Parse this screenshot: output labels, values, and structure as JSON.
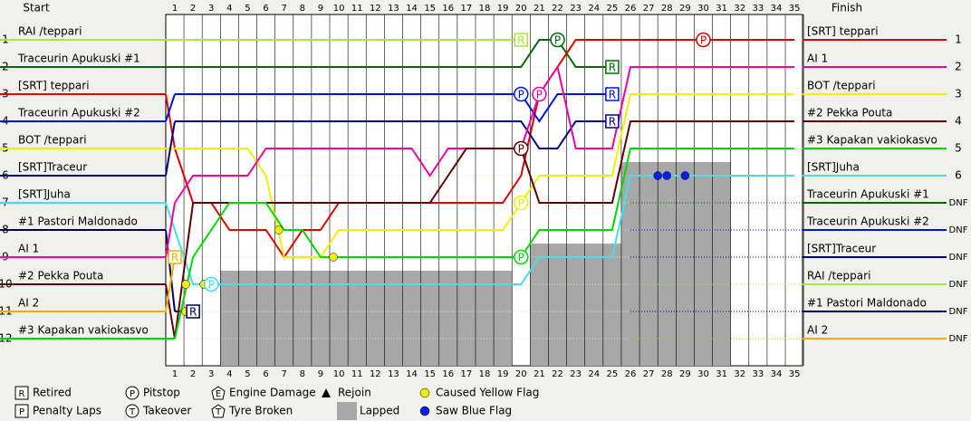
{
  "chart_data": {
    "type": "lapchart",
    "start_title": "Start",
    "finish_title": "Finish",
    "laps": [
      1,
      2,
      3,
      4,
      5,
      6,
      7,
      8,
      9,
      10,
      11,
      12,
      13,
      14,
      15,
      16,
      17,
      18,
      19,
      20,
      21,
      22,
      23,
      24,
      25,
      26,
      27,
      28,
      29,
      30,
      31,
      32,
      33,
      34,
      35
    ],
    "positions": [
      1,
      2,
      3,
      4,
      5,
      6,
      7,
      8,
      9,
      10,
      11,
      12
    ],
    "series": [
      {
        "name": "RAI /teppari",
        "color": "#a8e838",
        "start": 1,
        "values": [
          1,
          1,
          1,
          1,
          1,
          1,
          1,
          1,
          1,
          1,
          1,
          1,
          1,
          1,
          1,
          1,
          1,
          1,
          1,
          1,
          null,
          null,
          null,
          null,
          null,
          null,
          null,
          null,
          null,
          null,
          null,
          null,
          null,
          null,
          null
        ],
        "events": [
          {
            "lap": 20,
            "label": "R",
            "shape": "square"
          }
        ]
      },
      {
        "name": "Traceurin Apukuski #1",
        "color": "#006a00",
        "start": 2,
        "values": [
          2,
          2,
          2,
          2,
          2,
          2,
          2,
          2,
          2,
          2,
          2,
          2,
          2,
          2,
          2,
          2,
          2,
          2,
          2,
          2,
          1,
          1,
          2,
          2,
          2,
          null,
          null,
          null,
          null,
          null,
          null,
          null,
          null,
          null,
          null
        ],
        "events": [
          {
            "lap": 22,
            "label": "P",
            "shape": "circle"
          },
          {
            "lap": 25,
            "label": "R",
            "shape": "square"
          }
        ]
      },
      {
        "name": "[SRT] teppari",
        "color": "#e00000",
        "start": 3,
        "values": [
          5,
          7,
          7,
          8,
          8,
          8,
          9,
          8,
          8,
          7,
          7,
          7,
          7,
          7,
          7,
          7,
          7,
          7,
          7,
          6,
          3,
          2,
          1,
          1,
          1,
          1,
          1,
          1,
          1,
          1,
          1,
          1,
          1,
          1,
          1
        ],
        "events": [
          {
            "lap": 30,
            "label": "P",
            "shape": "circle"
          }
        ]
      },
      {
        "name": "Traceurin Apukuski #2",
        "color": "#0010e0",
        "start": 4,
        "values": [
          3,
          3,
          3,
          3,
          3,
          3,
          3,
          3,
          3,
          3,
          3,
          3,
          3,
          3,
          3,
          3,
          3,
          3,
          3,
          3,
          4,
          3,
          3,
          3,
          3,
          null,
          null,
          null,
          null,
          null,
          null,
          null,
          null,
          null,
          null
        ],
        "events": [
          {
            "lap": 20,
            "label": "P",
            "shape": "circle"
          },
          {
            "lap": 25,
            "label": "R",
            "shape": "square"
          }
        ]
      },
      {
        "name": "BOT /teppari",
        "color": "#f0f000",
        "start": 5,
        "values": [
          5,
          5,
          5,
          5,
          5,
          6,
          9,
          9,
          9,
          8,
          8,
          8,
          8,
          8,
          8,
          8,
          8,
          8,
          8,
          7,
          6,
          6,
          6,
          6,
          6,
          3,
          3,
          3,
          3,
          3,
          3,
          3,
          3,
          3,
          3
        ],
        "events": [
          {
            "lap": 20,
            "label": "P",
            "shape": "circle"
          }
        ]
      },
      {
        "name": "[SRT]Traceur",
        "color": "#000090",
        "start": 6,
        "values": [
          4,
          4,
          4,
          4,
          4,
          4,
          4,
          4,
          4,
          4,
          4,
          4,
          4,
          4,
          4,
          4,
          4,
          4,
          4,
          4,
          5,
          5,
          4,
          4,
          4,
          null,
          null,
          null,
          null,
          null,
          null,
          null,
          null,
          null,
          null
        ],
        "events": [
          {
            "lap": 25,
            "label": "R",
            "shape": "square"
          }
        ]
      },
      {
        "name": "[SRT]Juha",
        "color": "#40e0f0",
        "start": 7,
        "values": [
          8,
          10,
          10,
          10,
          10,
          10,
          10,
          10,
          10,
          10,
          10,
          10,
          10,
          10,
          10,
          10,
          10,
          10,
          10,
          10,
          9,
          9,
          9,
          9,
          9,
          6,
          6,
          6,
          6,
          6,
          6,
          6,
          6,
          6,
          6
        ],
        "events": [
          {
            "lap": 3,
            "label": "P",
            "shape": "circle"
          }
        ]
      },
      {
        "name": "#1 Pastori Maldonado",
        "color": "#000050",
        "start": 8,
        "values": [
          11,
          11,
          null,
          null,
          null,
          null,
          null,
          null,
          null,
          null,
          null,
          null,
          null,
          null,
          null,
          null,
          null,
          null,
          null,
          null,
          null,
          null,
          null,
          null,
          null,
          null,
          null,
          null,
          null,
          null,
          null,
          null,
          null,
          null,
          null
        ],
        "events": [
          {
            "lap": 2,
            "label": "R",
            "shape": "square"
          }
        ]
      },
      {
        "name": "AI 1",
        "color": "#f000a0",
        "start": 9,
        "values": [
          7,
          6,
          6,
          6,
          6,
          5,
          5,
          5,
          5,
          5,
          5,
          5,
          5,
          5,
          6,
          5,
          5,
          5,
          5,
          5,
          3,
          2,
          5,
          5,
          5,
          2,
          2,
          2,
          2,
          2,
          2,
          2,
          2,
          2,
          2
        ],
        "events": [
          {
            "lap": 21,
            "label": "P",
            "shape": "circle"
          }
        ]
      },
      {
        "name": "#2 Pekka Pouta",
        "color": "#600000",
        "start": 10,
        "values": [
          12,
          7,
          7,
          7,
          7,
          7,
          7,
          7,
          7,
          7,
          7,
          7,
          7,
          7,
          7,
          6,
          5,
          5,
          5,
          5,
          7,
          7,
          7,
          7,
          7,
          4,
          4,
          4,
          4,
          4,
          4,
          4,
          4,
          4,
          4
        ],
        "events": [
          {
            "lap": 20,
            "label": "P",
            "shape": "circle"
          }
        ]
      },
      {
        "name": "AI 2",
        "color": "#f0b000",
        "start": 11,
        "values": [
          9,
          null,
          null,
          null,
          null,
          null,
          null,
          null,
          null,
          null,
          null,
          null,
          null,
          null,
          null,
          null,
          null,
          null,
          null,
          null,
          null,
          null,
          null,
          null,
          null,
          null,
          null,
          null,
          null,
          null,
          null,
          null,
          null,
          null,
          null
        ],
        "events": [
          {
            "lap": 1,
            "label": "R",
            "shape": "square"
          }
        ]
      },
      {
        "name": "#3 Kapakan vakiokasvo",
        "color": "#00d800",
        "start": 12,
        "values": [
          12,
          9,
          8,
          7,
          7,
          7,
          8,
          8,
          9,
          9,
          9,
          9,
          9,
          9,
          9,
          9,
          9,
          9,
          9,
          9,
          8,
          8,
          8,
          8,
          8,
          5,
          5,
          5,
          5,
          5,
          5,
          5,
          5,
          5,
          5
        ],
        "events": [
          {
            "lap": 20,
            "label": "P",
            "shape": "circle"
          }
        ]
      }
    ],
    "finish": [
      {
        "name": "[SRT] teppari",
        "result": 1
      },
      {
        "name": "AI 1",
        "result": 2
      },
      {
        "name": "BOT /teppari",
        "result": 3
      },
      {
        "name": "#2 Pekka Pouta",
        "result": 4
      },
      {
        "name": "#3 Kapakan vakiokasvo",
        "result": 5
      },
      {
        "name": "[SRT]Juha",
        "result": 6
      },
      {
        "name": "Traceurin Apukuski #1",
        "result": "DNF"
      },
      {
        "name": "Traceurin Apukuski #2",
        "result": "DNF"
      },
      {
        "name": "[SRT]Traceur",
        "result": "DNF"
      },
      {
        "name": "RAI /teppari",
        "result": "DNF"
      },
      {
        "name": "#1 Pastori Maldonado",
        "result": "DNF"
      },
      {
        "name": "AI 2",
        "result": "DNF"
      }
    ],
    "lapped": [
      {
        "from": 3.5,
        "to": 19.5,
        "top": 9.5
      },
      {
        "from": 20.5,
        "to": 25.5,
        "top": 8.5
      },
      {
        "from": 25.5,
        "to": 31.5,
        "top": 5.5
      }
    ],
    "flags": [
      {
        "lap": 1.6,
        "position": 10,
        "color": "#f0f000"
      },
      {
        "lap": 2.6,
        "position": 10,
        "color": "#f0f000"
      },
      {
        "lap": 1.6,
        "position": 11,
        "color": "#f0f000"
      },
      {
        "lap": 6.7,
        "position": 8,
        "color": "#f0f000"
      },
      {
        "lap": 9.7,
        "position": 9,
        "color": "#f0f000"
      },
      {
        "lap": 27.5,
        "position": 6,
        "color": "#0020f0"
      },
      {
        "lap": 28,
        "position": 6,
        "color": "#0020f0"
      },
      {
        "lap": 29,
        "position": 6,
        "color": "#0020f0"
      }
    ],
    "legend": [
      {
        "symbol": "R",
        "shape": "square",
        "text": "Retired"
      },
      {
        "symbol": "P",
        "shape": "square",
        "text": "Penalty Laps"
      },
      {
        "symbol": "P",
        "shape": "circle",
        "text": "Pitstop"
      },
      {
        "symbol": "T",
        "shape": "circle",
        "text": "Takeover"
      },
      {
        "symbol": "E",
        "shape": "pentagon",
        "text": "Engine Damage"
      },
      {
        "symbol": "T",
        "shape": "pentagon",
        "text": "Tyre Broken"
      },
      {
        "shape": "triangle",
        "text": "Rejoin"
      },
      {
        "shape": "rect",
        "color": "#a8a8a8",
        "text": "Lapped"
      },
      {
        "shape": "dot",
        "color": "#f0f000",
        "text": "Caused Yellow Flag"
      },
      {
        "shape": "dot",
        "color": "#0020f0",
        "text": "Saw Blue Flag"
      }
    ]
  }
}
